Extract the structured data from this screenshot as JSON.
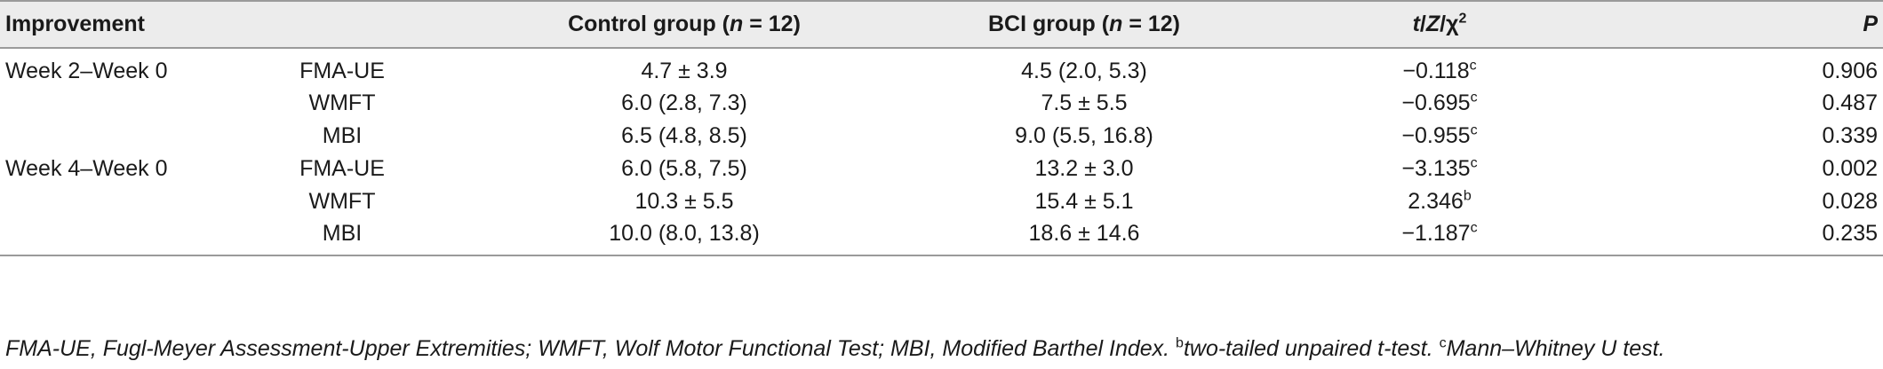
{
  "table": {
    "headers": {
      "improvement": "Improvement",
      "control_prefix": "Control group (",
      "control_n": "n",
      "control_suffix": " = 12)",
      "bci_prefix": "BCI group (",
      "bci_n": "n",
      "bci_suffix": " = 12)",
      "stat_t": "t",
      "stat_sep1": "/",
      "stat_z": "Z",
      "stat_sep2": "/",
      "stat_chi": "χ",
      "stat_exp": "2",
      "p": "P"
    },
    "rows": [
      {
        "group": "Week 2–Week 0",
        "measure": "FMA-UE",
        "control": "4.7 ± 3.9",
        "bci": "4.5 (2.0, 5.3)",
        "stat": "−0.118",
        "stat_sup": "c",
        "p": "0.906"
      },
      {
        "group": "",
        "measure": "WMFT",
        "control": "6.0 (2.8, 7.3)",
        "bci": "7.5 ± 5.5",
        "stat": "−0.695",
        "stat_sup": "c",
        "p": "0.487"
      },
      {
        "group": "",
        "measure": "MBI",
        "control": "6.5 (4.8, 8.5)",
        "bci": "9.0 (5.5, 16.8)",
        "stat": "−0.955",
        "stat_sup": "c",
        "p": "0.339"
      },
      {
        "group": "Week 4–Week 0",
        "measure": "FMA-UE",
        "control": "6.0 (5.8, 7.5)",
        "bci": "13.2 ± 3.0",
        "stat": "−3.135",
        "stat_sup": "c",
        "p": "0.002"
      },
      {
        "group": "",
        "measure": "WMFT",
        "control": "10.3 ± 5.5",
        "bci": "15.4 ± 5.1",
        "stat": "2.346",
        "stat_sup": "b",
        "p": "0.028"
      },
      {
        "group": "",
        "measure": "MBI",
        "control": "10.0 (8.0, 13.8)",
        "bci": "18.6 ± 14.6",
        "stat": "−1.187",
        "stat_sup": "c",
        "p": "0.235"
      }
    ]
  },
  "footnote": {
    "main": "FMA-UE, Fugl-Meyer Assessment-Upper Extremities; WMFT, Wolf Motor Functional Test; MBI, Modified Barthel Index. ",
    "b_mark": "b",
    "b_text": "two-tailed unpaired t-test. ",
    "c_mark": "c",
    "c_text": "Mann–Whitney U test."
  }
}
